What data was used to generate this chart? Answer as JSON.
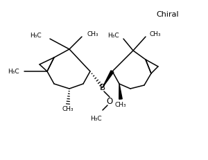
{
  "bg_color": "#ffffff",
  "line_color": "#000000",
  "fig_width": 3.0,
  "fig_height": 2.31,
  "dpi": 100,
  "chiral_text": "Chiral",
  "boron_label": "B",
  "oxygen_label": "O"
}
